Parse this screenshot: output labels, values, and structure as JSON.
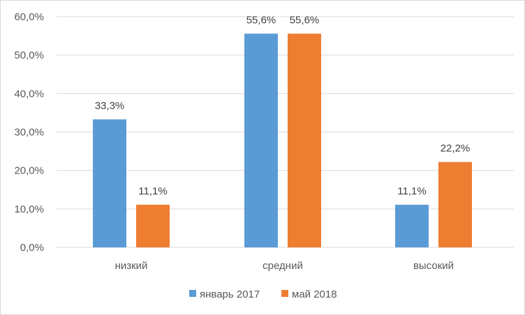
{
  "chart_data": {
    "type": "bar",
    "categories": [
      "низкий",
      "средний",
      "высокий"
    ],
    "series": [
      {
        "name": "январь 2017",
        "color": "#5b9bd5",
        "values": [
          33.3,
          55.6,
          11.1
        ],
        "labels": [
          "33,3%",
          "55,6%",
          "11,1%"
        ]
      },
      {
        "name": "май 2018",
        "color": "#ed7d31",
        "values": [
          11.1,
          55.6,
          22.2
        ],
        "labels": [
          "11,1%",
          "55,6%",
          "22,2%"
        ]
      }
    ],
    "y_ticks": [
      "0,0%",
      "10,0%",
      "20,0%",
      "30,0%",
      "40,0%",
      "50,0%",
      "60,0%"
    ],
    "ylim": [
      0,
      60
    ],
    "grid": true,
    "legend_position": "bottom"
  }
}
